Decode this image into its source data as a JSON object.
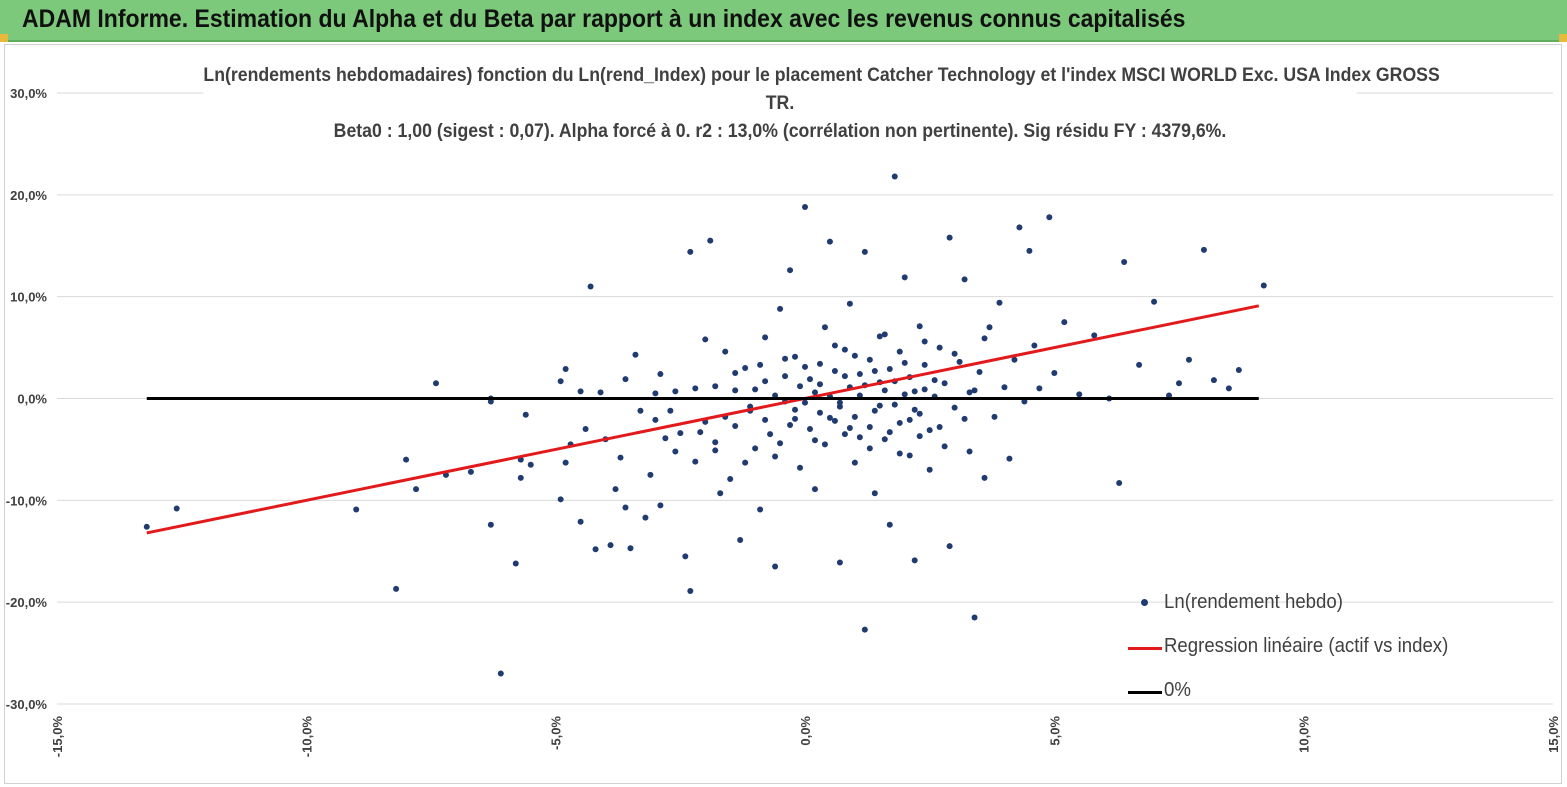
{
  "banner": {
    "title": "ADAM Informe. Estimation du Alpha et du Beta par rapport à un index avec les revenus connus capitalisés"
  },
  "colors": {
    "banner_bg": "#7dc97b",
    "points": "#1f3b70",
    "regression": "#e31a1c",
    "zero_line": "#000000",
    "grid": "#d9d9d9",
    "text": "#404040"
  },
  "chart_data": {
    "type": "scatter",
    "title_lines": [
      "Ln(rendements hebdomadaires) fonction du Ln(rend_Index) pour le placement Catcher Technology  et l'index MSCI WORLD Exc. USA Index GROSS",
      "TR.",
      "Beta0 : 1,00 (sigest : 0,07). Alpha forcé à 0. r2 : 13,0% (corrélation non pertinente). Sig résidu FY : 4379,6%."
    ],
    "xlim": [
      -0.15,
      0.15
    ],
    "ylim": [
      -0.3,
      0.3
    ],
    "x_ticks": [
      -0.15,
      -0.1,
      -0.05,
      0.0,
      0.05,
      0.1,
      0.15
    ],
    "y_ticks": [
      -0.3,
      -0.2,
      -0.1,
      0.0,
      0.1,
      0.2,
      0.3
    ],
    "x_tick_labels": [
      "-15,0%",
      "-10,0%",
      "-5,0%",
      "0,0%",
      "5,0%",
      "10,0%",
      "15,0%"
    ],
    "y_tick_labels": [
      "-30,0%",
      "-20,0%",
      "-10,0%",
      "0,0%",
      "10,0%",
      "20,0%",
      "30,0%"
    ],
    "grid": "horizontal",
    "legend_placement": "bottom-right",
    "legend": [
      {
        "key": "points",
        "label": "Ln(rendement hebdo)"
      },
      {
        "key": "regression",
        "label": "Regression linéaire (actif vs index)"
      },
      {
        "key": "zero",
        "label": "0%"
      }
    ],
    "series": [
      {
        "name": "Ln(rendement hebdo)",
        "kind": "scatter",
        "points": [
          [
            -0.132,
            -0.126
          ],
          [
            -0.126,
            -0.108
          ],
          [
            -0.09,
            -0.109
          ],
          [
            -0.082,
            -0.187
          ],
          [
            -0.08,
            -0.06
          ],
          [
            -0.078,
            -0.089
          ],
          [
            -0.074,
            0.015
          ],
          [
            -0.072,
            -0.075
          ],
          [
            -0.067,
            -0.072
          ],
          [
            -0.063,
            -0.124
          ],
          [
            -0.063,
            -0.003
          ],
          [
            -0.063,
            0.0
          ],
          [
            -0.061,
            -0.27
          ],
          [
            -0.058,
            -0.162
          ],
          [
            -0.057,
            -0.078
          ],
          [
            -0.057,
            -0.06
          ],
          [
            -0.056,
            -0.016
          ],
          [
            -0.055,
            -0.065
          ],
          [
            -0.049,
            -0.099
          ],
          [
            -0.049,
            0.017
          ],
          [
            -0.048,
            0.029
          ],
          [
            -0.048,
            -0.063
          ],
          [
            -0.047,
            -0.045
          ],
          [
            -0.045,
            0.007
          ],
          [
            -0.045,
            -0.121
          ],
          [
            -0.044,
            -0.03
          ],
          [
            -0.043,
            0.11
          ],
          [
            -0.042,
            -0.148
          ],
          [
            -0.041,
            0.006
          ],
          [
            -0.04,
            -0.04
          ],
          [
            -0.039,
            -0.144
          ],
          [
            -0.038,
            -0.089
          ],
          [
            -0.037,
            -0.058
          ],
          [
            -0.036,
            -0.107
          ],
          [
            -0.036,
            0.019
          ],
          [
            -0.035,
            -0.147
          ],
          [
            -0.034,
            0.043
          ],
          [
            -0.033,
            -0.012
          ],
          [
            -0.032,
            -0.117
          ],
          [
            -0.031,
            -0.075
          ],
          [
            -0.03,
            -0.021
          ],
          [
            -0.029,
            -0.105
          ],
          [
            -0.029,
            0.024
          ],
          [
            -0.028,
            -0.039
          ],
          [
            -0.027,
            -0.012
          ],
          [
            -0.026,
            0.007
          ],
          [
            -0.025,
            -0.034
          ],
          [
            -0.024,
            -0.155
          ],
          [
            -0.023,
            -0.189
          ],
          [
            -0.023,
            0.144
          ],
          [
            -0.022,
            -0.062
          ],
          [
            -0.021,
            -0.033
          ],
          [
            -0.02,
            -0.023
          ],
          [
            -0.02,
            0.058
          ],
          [
            -0.019,
            0.155
          ],
          [
            -0.018,
            -0.051
          ],
          [
            -0.018,
            0.012
          ],
          [
            -0.017,
            -0.093
          ],
          [
            -0.016,
            -0.018
          ],
          [
            -0.016,
            0.046
          ],
          [
            -0.015,
            -0.079
          ],
          [
            -0.014,
            0.008
          ],
          [
            -0.014,
            -0.027
          ],
          [
            -0.013,
            -0.139
          ],
          [
            -0.012,
            0.03
          ],
          [
            -0.012,
            -0.063
          ],
          [
            -0.011,
            -0.012
          ],
          [
            -0.01,
            0.009
          ],
          [
            -0.01,
            -0.049
          ],
          [
            -0.009,
            -0.109
          ],
          [
            -0.009,
            0.033
          ],
          [
            -0.008,
            -0.021
          ],
          [
            -0.008,
            0.06
          ],
          [
            -0.007,
            -0.035
          ],
          [
            -0.006,
            0.003
          ],
          [
            -0.006,
            -0.165
          ],
          [
            -0.005,
            0.088
          ],
          [
            -0.005,
            -0.044
          ],
          [
            -0.004,
            -0.003
          ],
          [
            -0.004,
            0.022
          ],
          [
            -0.003,
            -0.026
          ],
          [
            -0.003,
            0.126
          ],
          [
            -0.002,
            -0.011
          ],
          [
            -0.002,
            0.041
          ],
          [
            -0.001,
            -0.068
          ],
          [
            -0.001,
            0.012
          ],
          [
            0.0,
            -0.004
          ],
          [
            0.0,
            0.188
          ],
          [
            0.001,
            0.019
          ],
          [
            0.001,
            -0.03
          ],
          [
            0.002,
            0.006
          ],
          [
            0.002,
            -0.089
          ],
          [
            0.003,
            0.034
          ],
          [
            0.003,
            -0.014
          ],
          [
            0.004,
            0.07
          ],
          [
            0.004,
            -0.045
          ],
          [
            0.005,
            0.002
          ],
          [
            0.005,
            0.154
          ],
          [
            0.006,
            -0.022
          ],
          [
            0.006,
            0.027
          ],
          [
            0.007,
            -0.161
          ],
          [
            0.007,
            -0.008
          ],
          [
            0.008,
            0.048
          ],
          [
            0.008,
            -0.035
          ],
          [
            0.009,
            0.011
          ],
          [
            0.009,
            0.093
          ],
          [
            0.01,
            -0.018
          ],
          [
            0.01,
            -0.063
          ],
          [
            0.011,
            0.024
          ],
          [
            0.011,
            0.003
          ],
          [
            0.012,
            -0.227
          ],
          [
            0.012,
            0.144
          ],
          [
            0.013,
            -0.028
          ],
          [
            0.013,
            0.038
          ],
          [
            0.014,
            -0.012
          ],
          [
            0.014,
            -0.093
          ],
          [
            0.015,
            0.016
          ],
          [
            0.015,
            0.061
          ],
          [
            0.016,
            -0.04
          ],
          [
            0.016,
            0.008
          ],
          [
            0.017,
            -0.124
          ],
          [
            0.017,
            0.029
          ],
          [
            0.018,
            -0.006
          ],
          [
            0.018,
            0.218
          ],
          [
            0.019,
            0.046
          ],
          [
            0.019,
            -0.054
          ],
          [
            0.02,
            0.004
          ],
          [
            0.02,
            0.119
          ],
          [
            0.021,
            -0.021
          ],
          [
            0.021,
            0.021
          ],
          [
            0.022,
            -0.159
          ],
          [
            0.022,
            -0.011
          ],
          [
            0.023,
            0.071
          ],
          [
            0.023,
            -0.037
          ],
          [
            0.024,
            0.009
          ],
          [
            0.024,
            0.033
          ],
          [
            0.025,
            -0.07
          ],
          [
            0.026,
            0.002
          ],
          [
            0.027,
            0.05
          ],
          [
            0.027,
            -0.028
          ],
          [
            0.028,
            0.015
          ],
          [
            0.029,
            0.158
          ],
          [
            0.029,
            -0.145
          ],
          [
            0.03,
            -0.009
          ],
          [
            0.031,
            0.036
          ],
          [
            0.032,
            0.117
          ],
          [
            0.033,
            -0.052
          ],
          [
            0.033,
            0.006
          ],
          [
            0.034,
            -0.215
          ],
          [
            0.035,
            0.026
          ],
          [
            0.036,
            -0.078
          ],
          [
            0.037,
            0.07
          ],
          [
            0.038,
            -0.018
          ],
          [
            0.039,
            0.094
          ],
          [
            0.04,
            0.011
          ],
          [
            0.041,
            -0.059
          ],
          [
            0.042,
            0.038
          ],
          [
            0.043,
            0.168
          ],
          [
            0.044,
            -0.003
          ],
          [
            0.045,
            0.145
          ],
          [
            0.046,
            0.052
          ],
          [
            0.047,
            0.01
          ],
          [
            0.049,
            0.178
          ],
          [
            0.05,
            0.025
          ],
          [
            0.052,
            0.075
          ],
          [
            0.055,
            0.004
          ],
          [
            0.058,
            0.062
          ],
          [
            0.061,
            0.0
          ],
          [
            0.063,
            -0.083
          ],
          [
            0.064,
            0.134
          ],
          [
            0.067,
            0.033
          ],
          [
            0.07,
            0.095
          ],
          [
            0.073,
            0.003
          ],
          [
            0.075,
            0.015
          ],
          [
            0.077,
            0.038
          ],
          [
            0.08,
            0.146
          ],
          [
            0.082,
            0.018
          ],
          [
            0.085,
            0.01
          ],
          [
            0.087,
            0.028
          ],
          [
            0.092,
            0.111
          ],
          [
            -0.03,
            0.005
          ],
          [
            -0.026,
            -0.052
          ],
          [
            -0.022,
            0.01
          ],
          [
            -0.018,
            -0.043
          ],
          [
            -0.014,
            0.025
          ],
          [
            -0.011,
            -0.008
          ],
          [
            -0.008,
            0.017
          ],
          [
            -0.006,
            -0.057
          ],
          [
            -0.004,
            0.039
          ],
          [
            -0.002,
            -0.02
          ],
          [
            0.0,
            0.031
          ],
          [
            0.002,
            -0.041
          ],
          [
            0.003,
            0.014
          ],
          [
            0.005,
            -0.019
          ],
          [
            0.006,
            0.052
          ],
          [
            0.007,
            -0.004
          ],
          [
            0.008,
            0.022
          ],
          [
            0.009,
            -0.029
          ],
          [
            0.01,
            0.042
          ],
          [
            0.011,
            -0.038
          ],
          [
            0.012,
            0.013
          ],
          [
            0.013,
            -0.049
          ],
          [
            0.014,
            0.027
          ],
          [
            0.015,
            -0.007
          ],
          [
            0.016,
            0.063
          ],
          [
            0.017,
            -0.033
          ],
          [
            0.018,
            0.017
          ],
          [
            0.019,
            -0.024
          ],
          [
            0.02,
            0.035
          ],
          [
            0.021,
            -0.056
          ],
          [
            0.022,
            0.007
          ],
          [
            0.023,
            -0.015
          ],
          [
            0.024,
            0.056
          ],
          [
            0.025,
            -0.031
          ],
          [
            0.026,
            0.018
          ],
          [
            0.028,
            -0.047
          ],
          [
            0.03,
            0.044
          ],
          [
            0.032,
            -0.02
          ],
          [
            0.034,
            0.008
          ],
          [
            0.036,
            0.059
          ]
        ]
      },
      {
        "name": "Regression linéaire (actif vs index)",
        "kind": "line",
        "x": [
          -0.132,
          0.091
        ],
        "y": [
          -0.132,
          0.091
        ]
      },
      {
        "name": "0%",
        "kind": "line",
        "x": [
          -0.132,
          0.091
        ],
        "y": [
          0.0,
          0.0
        ]
      }
    ]
  }
}
